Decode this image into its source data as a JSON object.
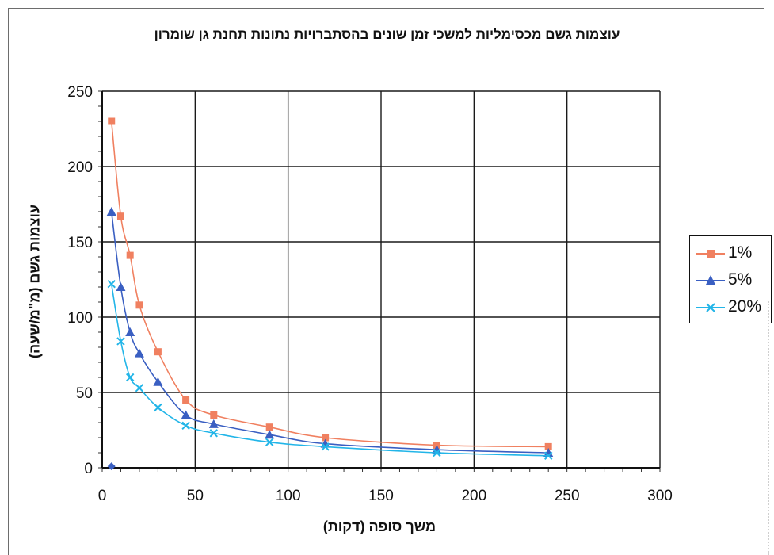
{
  "chart_data": {
    "type": "line",
    "title": "עוצמות גשם מכסימליות למשכי זמן שונים בהסתברויות נתונות תחנת גן שומרון",
    "xlabel": "משך סופה (דקות)",
    "ylabel": "עוצמות גשם (מ\"מ/שעה)",
    "xlim": [
      0,
      300
    ],
    "ylim": [
      0,
      250
    ],
    "xticks": [
      0,
      50,
      100,
      150,
      200,
      250,
      300
    ],
    "yticks": [
      0,
      50,
      100,
      150,
      200,
      250
    ],
    "grid": true,
    "legend_position": "right",
    "series": [
      {
        "name": "1%",
        "color": "#f08060",
        "marker": "square",
        "x": [
          5,
          10,
          15,
          20,
          30,
          45,
          60,
          90,
          120,
          180,
          240
        ],
        "y": [
          230,
          167,
          141,
          108,
          77,
          45,
          35,
          27,
          20,
          15,
          14
        ]
      },
      {
        "name": "5%",
        "color": "#3a5fc2",
        "marker": "triangle",
        "x": [
          5,
          10,
          15,
          20,
          30,
          45,
          60,
          90,
          120,
          180,
          240
        ],
        "y": [
          170,
          120,
          90,
          76,
          57,
          35,
          29,
          22,
          16,
          12,
          10
        ]
      },
      {
        "name": "20%",
        "color": "#22b5e8",
        "marker": "x",
        "x": [
          5,
          10,
          15,
          20,
          30,
          45,
          60,
          90,
          120,
          180,
          240
        ],
        "y": [
          122,
          84,
          60,
          53,
          40,
          28,
          23,
          17,
          14,
          10,
          8
        ]
      }
    ],
    "stray_points": [
      {
        "x": 5,
        "y": 1,
        "color": "#3a5fc2",
        "marker": "diamond"
      }
    ]
  }
}
